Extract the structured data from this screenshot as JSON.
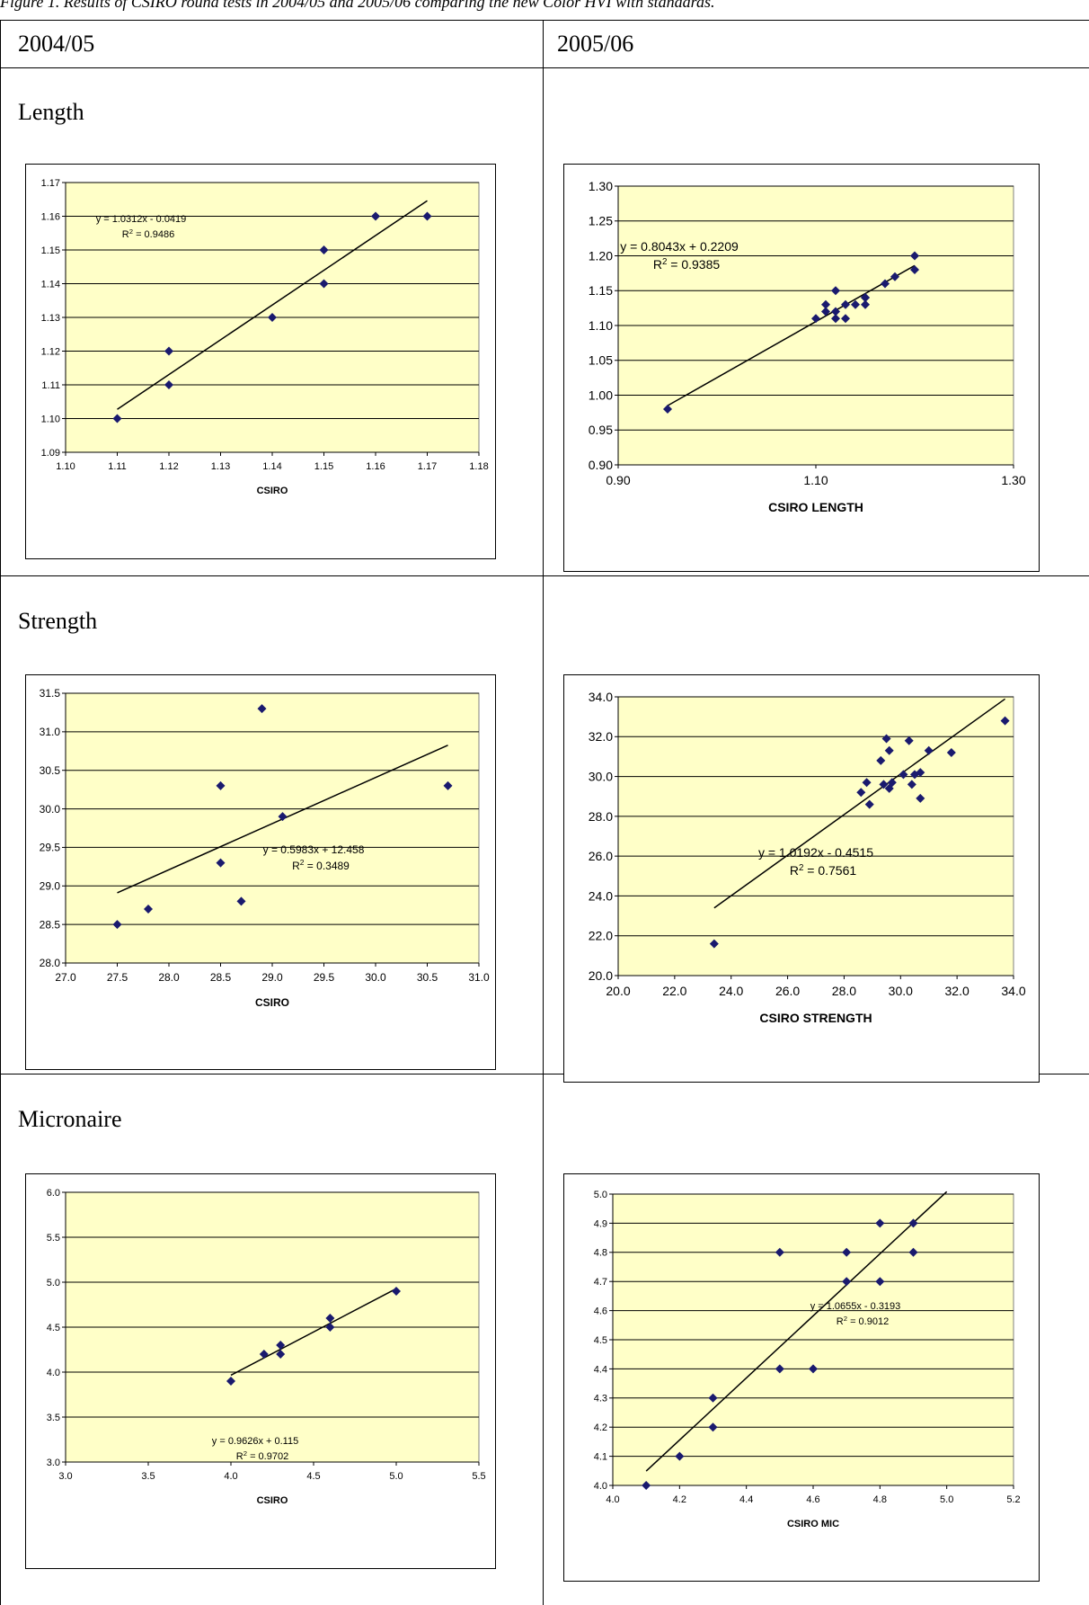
{
  "caption": "Figure 1. Results of CSIRO round tests in 2004/05 and 2005/06 comparing the new Color HVI with standards.",
  "columns": [
    "2004/05",
    "2005/06"
  ],
  "rows": [
    "Length",
    "Strength",
    "Micronaire"
  ],
  "colors": {
    "plot_bg": "#ffffc8",
    "marker": "#1a1a6e",
    "line": "#000000"
  },
  "chart_data": [
    {
      "type": "scatter",
      "xlabel": "CSIRO",
      "xlim": [
        1.1,
        1.18
      ],
      "ylim": [
        1.09,
        1.17
      ],
      "xticks": [
        "1.10",
        "1.11",
        "1.12",
        "1.13",
        "1.14",
        "1.15",
        "1.16",
        "1.17",
        "1.18"
      ],
      "yticks": [
        "1.09",
        "1.10",
        "1.11",
        "1.12",
        "1.13",
        "1.14",
        "1.15",
        "1.16",
        "1.17"
      ],
      "x": [
        1.11,
        1.12,
        1.12,
        1.14,
        1.15,
        1.15,
        1.16,
        1.17
      ],
      "y": [
        1.1,
        1.12,
        1.11,
        1.13,
        1.15,
        1.14,
        1.16,
        1.16
      ],
      "trendline": {
        "slope": 1.0312,
        "intercept": -0.0419,
        "x_range": [
          1.11,
          1.17
        ]
      },
      "equation": "y = 1.0312x - 0.0419",
      "r2": "0.9486"
    },
    {
      "type": "scatter",
      "xlabel": "CSIRO LENGTH",
      "xlim": [
        0.9,
        1.3
      ],
      "ylim": [
        0.9,
        1.3
      ],
      "xticks": [
        "0.90",
        "1.10",
        "1.30"
      ],
      "yticks": [
        "0.90",
        "0.95",
        "1.00",
        "1.05",
        "1.10",
        "1.15",
        "1.20",
        "1.25",
        "1.30"
      ],
      "x": [
        0.95,
        1.1,
        1.11,
        1.11,
        1.12,
        1.12,
        1.12,
        1.13,
        1.13,
        1.14,
        1.15,
        1.15,
        1.15,
        1.17,
        1.18,
        1.2,
        1.2
      ],
      "y": [
        0.98,
        1.11,
        1.13,
        1.12,
        1.15,
        1.12,
        1.11,
        1.13,
        1.11,
        1.13,
        1.14,
        1.13,
        1.14,
        1.16,
        1.17,
        1.2,
        1.18
      ],
      "trendline": {
        "slope": 0.8043,
        "intercept": 0.2209,
        "x_range": [
          0.95,
          1.2
        ]
      },
      "equation": "y = 0.8043x + 0.2209",
      "r2": "0.9385"
    },
    {
      "type": "scatter",
      "xlabel": "CSIRO",
      "xlim": [
        27.0,
        31.0
      ],
      "ylim": [
        28.0,
        31.5
      ],
      "xticks": [
        "27.0",
        "27.5",
        "28.0",
        "28.5",
        "29.0",
        "29.5",
        "30.0",
        "30.5",
        "31.0"
      ],
      "yticks": [
        "28.0",
        "28.5",
        "29.0",
        "29.5",
        "30.0",
        "30.5",
        "31.0",
        "31.5"
      ],
      "x": [
        27.5,
        27.8,
        28.5,
        28.5,
        28.7,
        28.9,
        29.1,
        30.7
      ],
      "y": [
        28.5,
        28.7,
        30.3,
        29.3,
        28.8,
        31.3,
        29.9,
        30.3
      ],
      "trendline": {
        "slope": 0.5983,
        "intercept": 12.458,
        "x_range": [
          27.5,
          30.7
        ]
      },
      "equation": "y = 0.5983x + 12.458",
      "r2": "0.3489"
    },
    {
      "type": "scatter",
      "xlabel": "CSIRO STRENGTH",
      "xlim": [
        20.0,
        34.0
      ],
      "ylim": [
        20.0,
        34.0
      ],
      "xticks": [
        "20.0",
        "22.0",
        "24.0",
        "26.0",
        "28.0",
        "30.0",
        "32.0",
        "34.0"
      ],
      "yticks": [
        "20.0",
        "22.0",
        "24.0",
        "26.0",
        "28.0",
        "30.0",
        "32.0",
        "34.0"
      ],
      "x": [
        23.4,
        28.6,
        28.8,
        28.9,
        29.3,
        29.4,
        29.5,
        29.6,
        29.6,
        29.7,
        30.1,
        30.3,
        30.4,
        30.5,
        30.7,
        30.7,
        31.0,
        31.8,
        33.7
      ],
      "y": [
        21.6,
        29.2,
        29.7,
        28.6,
        30.8,
        29.6,
        31.9,
        31.3,
        29.4,
        29.7,
        30.1,
        31.8,
        29.6,
        30.1,
        28.9,
        30.2,
        31.3,
        31.2,
        32.8
      ],
      "trendline": {
        "slope": 1.0192,
        "intercept": -0.4515,
        "x_range": [
          23.4,
          33.7
        ]
      },
      "equation": "y = 1.0192x - 0.4515",
      "r2": "0.7561"
    },
    {
      "type": "scatter",
      "xlabel": "CSIRO",
      "xlim": [
        3.0,
        5.5
      ],
      "ylim": [
        3.0,
        6.0
      ],
      "xticks": [
        "3.0",
        "3.5",
        "4.0",
        "4.5",
        "5.0",
        "5.5"
      ],
      "yticks": [
        "3.0",
        "3.5",
        "4.0",
        "4.5",
        "5.0",
        "5.5",
        "6.0"
      ],
      "x": [
        4.0,
        4.2,
        4.3,
        4.3,
        4.6,
        4.6,
        5.0
      ],
      "y": [
        3.9,
        4.2,
        4.3,
        4.2,
        4.6,
        4.5,
        4.9
      ],
      "trendline": {
        "slope": 0.9626,
        "intercept": 0.115,
        "x_range": [
          4.0,
          5.0
        ]
      },
      "equation": "y = 0.9626x + 0.115",
      "r2": "0.9702"
    },
    {
      "type": "scatter",
      "xlabel": "CSIRO MIC",
      "xlim": [
        4.0,
        5.2
      ],
      "ylim": [
        4.0,
        5.0
      ],
      "xticks": [
        "4.0",
        "4.2",
        "4.4",
        "4.6",
        "4.8",
        "5.0",
        "5.2"
      ],
      "yticks": [
        "4.0",
        "4.1",
        "4.2",
        "4.3",
        "4.4",
        "4.5",
        "4.6",
        "4.7",
        "4.8",
        "4.9",
        "5.0"
      ],
      "x": [
        4.1,
        4.2,
        4.3,
        4.3,
        4.5,
        4.5,
        4.6,
        4.7,
        4.7,
        4.8,
        4.8,
        4.9,
        4.9
      ],
      "y": [
        4.0,
        4.1,
        4.3,
        4.2,
        4.8,
        4.4,
        4.4,
        4.8,
        4.7,
        4.9,
        4.7,
        4.9,
        4.8
      ],
      "trendline": {
        "slope": 1.0655,
        "intercept": -0.3193,
        "x_range": [
          4.1,
          5.0
        ]
      },
      "equation": "y = 1.0655x - 0.3193",
      "r2": "0.9012"
    }
  ]
}
